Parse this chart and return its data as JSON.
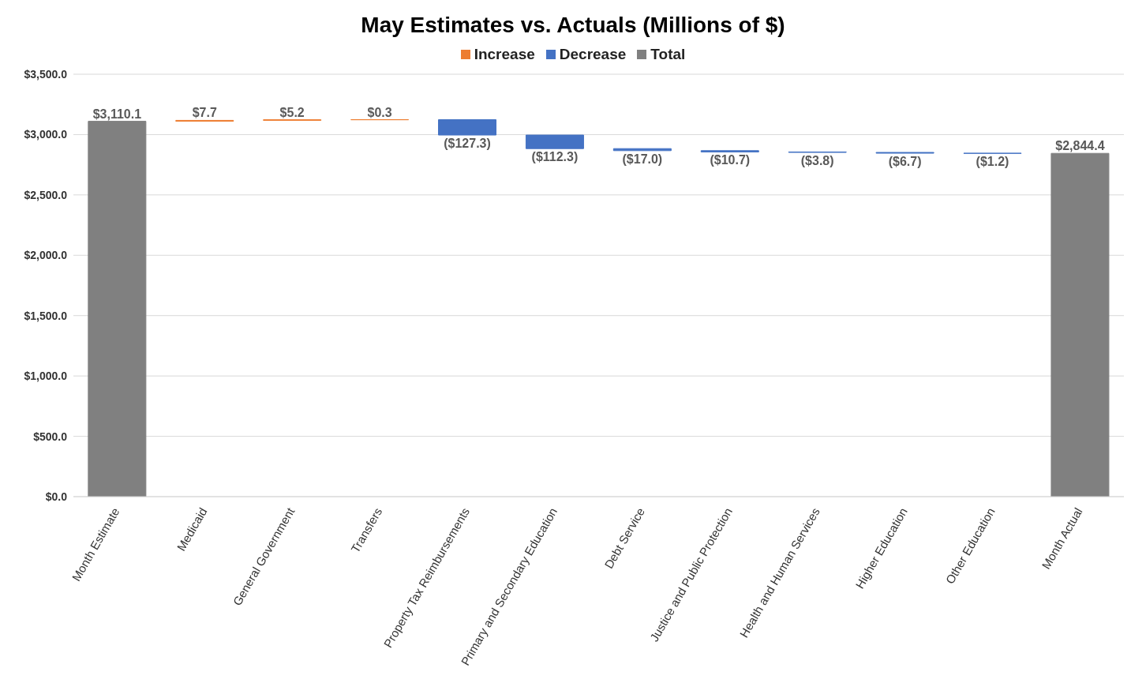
{
  "chart_data": {
    "type": "bar",
    "title": "May Estimates vs. Actuals (Millions of $)",
    "categories": [
      "Month Estimate",
      "Medicaid",
      "General Government",
      "Transfers",
      "Property Tax Reimbursements",
      "Primary and Secondary Education",
      "Debt Service",
      "Justice and Public Protection",
      "Health and Human Services",
      "Higher Education",
      "Other Education",
      "Month Actual"
    ],
    "series": [
      {
        "name": "Increase",
        "color": "#ed7d31",
        "values": [
          null,
          7.7,
          5.2,
          0.3,
          null,
          null,
          null,
          null,
          null,
          null,
          null,
          null
        ],
        "base": [
          null,
          3110.1,
          3117.8,
          3123.0,
          null,
          null,
          null,
          null,
          null,
          null,
          null,
          null
        ],
        "value_labels": [
          null,
          "$7.7",
          "$5.2",
          "$0.3",
          null,
          null,
          null,
          null,
          null,
          null,
          null,
          null
        ]
      },
      {
        "name": "Decrease",
        "color": "#4472c4",
        "values": [
          null,
          null,
          null,
          null,
          -127.3,
          -112.3,
          -17.0,
          -10.7,
          -3.8,
          -6.7,
          -1.2,
          null
        ],
        "base": [
          null,
          null,
          null,
          null,
          3123.3,
          2996.0,
          2883.7,
          2866.7,
          2856.0,
          2852.2,
          2845.5,
          null
        ],
        "value_labels": [
          null,
          null,
          null,
          null,
          "($127.3)",
          "($112.3)",
          "($17.0)",
          "($10.7)",
          "($3.8)",
          "($6.7)",
          "($1.2)",
          null
        ]
      },
      {
        "name": "Total",
        "color": "#808080",
        "values": [
          3110.1,
          null,
          null,
          null,
          null,
          null,
          null,
          null,
          null,
          null,
          null,
          2844.4
        ],
        "base": [
          0,
          null,
          null,
          null,
          null,
          null,
          null,
          null,
          null,
          null,
          null,
          0
        ],
        "value_labels": [
          "$3,110.1",
          null,
          null,
          null,
          null,
          null,
          null,
          null,
          null,
          null,
          null,
          "$2,844.4"
        ]
      }
    ],
    "ylim": [
      0,
      3500
    ],
    "yticks": [
      {
        "value": 0,
        "label": "$0.0"
      },
      {
        "value": 500,
        "label": "$500.0"
      },
      {
        "value": 1000,
        "label": "$1,000.0"
      },
      {
        "value": 1500,
        "label": "$1,500.0"
      },
      {
        "value": 2000,
        "label": "$2,000.0"
      },
      {
        "value": 2500,
        "label": "$2,500.0"
      },
      {
        "value": 3000,
        "label": "$3,000.0"
      },
      {
        "value": 3500,
        "label": "$3,500.0"
      }
    ],
    "grid": "y",
    "legend": "top"
  }
}
